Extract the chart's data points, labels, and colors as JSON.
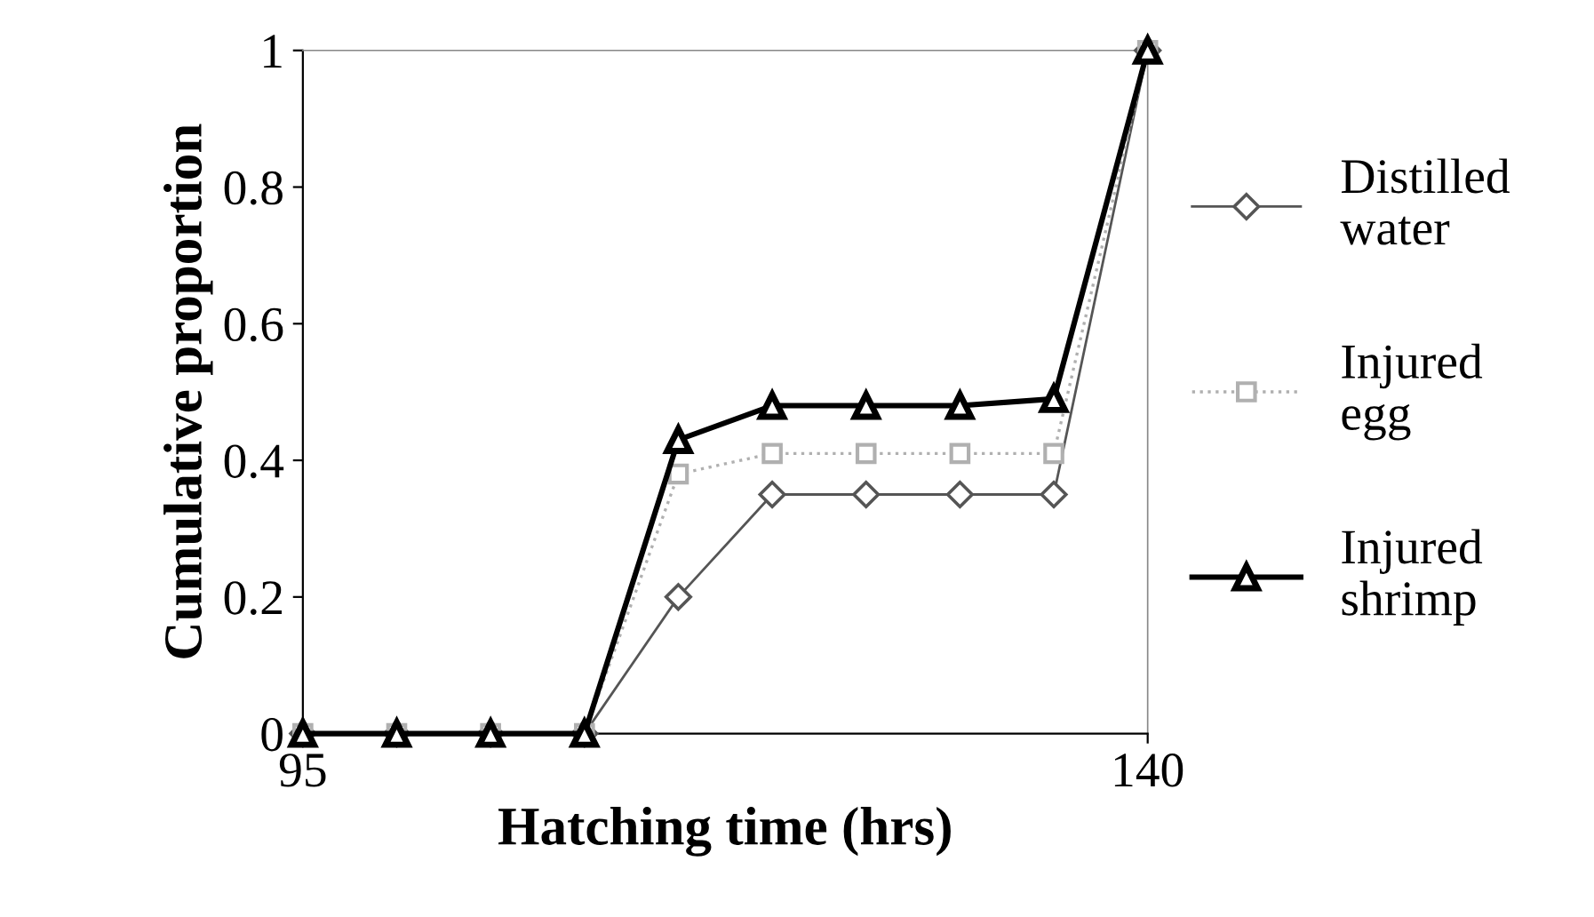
{
  "chart_data": {
    "type": "line",
    "xlabel": "Hatching time (hrs)",
    "ylabel": "Cumulative proportion",
    "x": [
      95,
      100,
      105,
      110,
      115,
      120,
      125,
      130,
      135,
      140
    ],
    "xlim": [
      95,
      140
    ],
    "xticks": [
      95,
      140
    ],
    "ylim": [
      0,
      1
    ],
    "yticks": [
      0,
      {
        "value": 0.2,
        "label": "0.2"
      },
      {
        "value": 0.4,
        "label": "0.4"
      },
      {
        "value": 0.6,
        "label": "0.6"
      },
      {
        "value": 0.8,
        "label": "0.8"
      },
      1
    ],
    "grid": false,
    "legend": "right",
    "series": [
      {
        "name": "Distilled water",
        "color": "#555555",
        "marker": "diamond",
        "values": [
          0,
          0,
          0,
          0,
          0.2,
          0.35,
          0.35,
          0.35,
          0.35,
          1
        ]
      },
      {
        "name": "Injured egg",
        "color": "#b0b0b0",
        "marker": "square",
        "line_style": "dotted",
        "values": [
          0,
          0,
          0,
          0,
          0.38,
          0.41,
          0.41,
          0.41,
          0.41,
          1
        ]
      },
      {
        "name": "Injured shrimp",
        "color": "#000000",
        "marker": "triangle",
        "values": [
          0,
          0,
          0,
          0,
          0.43,
          0.48,
          0.48,
          0.48,
          0.49,
          1
        ]
      }
    ]
  }
}
